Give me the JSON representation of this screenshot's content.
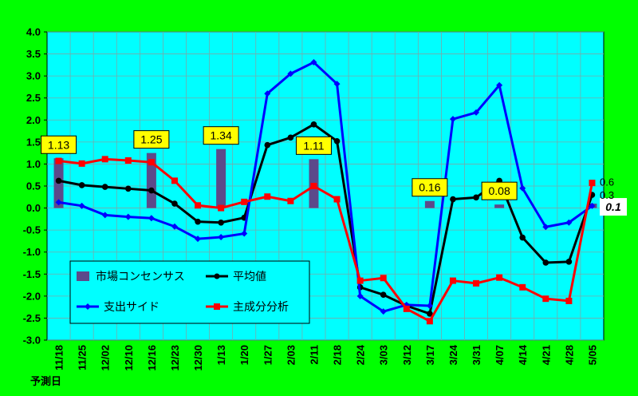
{
  "chart_data": {
    "type": "line",
    "xlabel": "予測日",
    "categories": [
      "11/18",
      "11/25",
      "12/02",
      "12/10",
      "12/16",
      "12/23",
      "12/30",
      "1/13",
      "1/20",
      "1/27",
      "2/03",
      "2/11",
      "2/18",
      "2/24",
      "3/03",
      "3/12",
      "3/17",
      "3/24",
      "3/31",
      "4/07",
      "4/14",
      "4/21",
      "4/28",
      "5/05"
    ],
    "ylim": [
      -3.0,
      4.0
    ],
    "yticks": [
      "4.0",
      "3.5",
      "3.0",
      "2.5",
      "2.0",
      "1.5",
      "1.0",
      "0.5",
      "0.0",
      "-0.5",
      "-1.0",
      "-1.5",
      "-2.0",
      "-2.5",
      "-3.0"
    ],
    "grid": true,
    "legend_position": "bottom-left",
    "bars": {
      "name": "市場コンセンサス",
      "color": "#5c4a8a",
      "points": [
        {
          "index": 0,
          "value": 1.13,
          "label": "1.13"
        },
        {
          "index": 4,
          "value": 1.25,
          "label": "1.25"
        },
        {
          "index": 7,
          "value": 1.34,
          "label": "1.34"
        },
        {
          "index": 11,
          "value": 1.11,
          "label": "1.11"
        },
        {
          "index": 16,
          "value": 0.16,
          "label": "0.16"
        },
        {
          "index": 19,
          "value": 0.08,
          "label": "0.08"
        },
        {
          "index": 23,
          "value": 0.1,
          "label": "0.1"
        }
      ]
    },
    "series": [
      {
        "name": "平均値",
        "color": "#000000",
        "marker": "circle",
        "values": [
          0.62,
          0.52,
          0.48,
          0.44,
          0.4,
          0.1,
          -0.31,
          -0.33,
          -0.22,
          1.43,
          1.6,
          1.9,
          1.52,
          -1.8,
          -1.97,
          -2.22,
          -2.4,
          0.2,
          0.24,
          0.62,
          -0.67,
          -1.24,
          -1.22,
          0.3
        ]
      },
      {
        "name": "支出サイド",
        "color": "#0000ff",
        "marker": "diamond",
        "values": [
          0.13,
          0.05,
          -0.16,
          -0.2,
          -0.23,
          -0.42,
          -0.7,
          -0.66,
          -0.58,
          2.6,
          3.05,
          3.31,
          2.82,
          -2.0,
          -2.35,
          -2.2,
          -2.22,
          2.02,
          2.17,
          2.79,
          0.45,
          -0.43,
          -0.33,
          0.05
        ]
      },
      {
        "name": "主成分分析",
        "color": "#ff0000",
        "marker": "square",
        "values": [
          1.07,
          1.01,
          1.11,
          1.08,
          1.04,
          0.62,
          0.06,
          0.0,
          0.14,
          0.26,
          0.16,
          0.5,
          0.2,
          -1.65,
          -1.59,
          -2.29,
          -2.57,
          -1.65,
          -1.71,
          -1.58,
          -1.8,
          -2.06,
          -2.11,
          0.57
        ]
      }
    ],
    "end_labels": [
      {
        "text": "0.6",
        "value": 0.6
      },
      {
        "text": "0.3",
        "value": 0.3
      }
    ]
  },
  "colors": {
    "background": "#00ff00",
    "plot_area": "#00ffff",
    "label_box": "#ffff00"
  }
}
